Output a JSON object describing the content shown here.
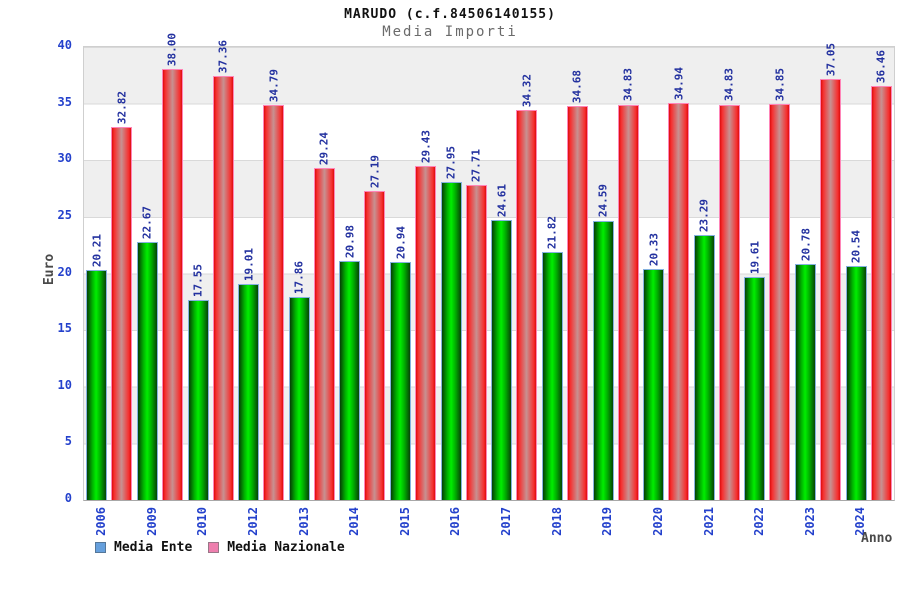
{
  "header": {
    "title": "MARUDO (c.f.84506140155)",
    "subtitle": "Media Importi"
  },
  "axes": {
    "y_label": "Euro",
    "x_label": "Anno",
    "y_ticks": [
      "40",
      "35",
      "30",
      "25",
      "20",
      "15",
      "10",
      "5",
      "0"
    ]
  },
  "legend": {
    "items": [
      {
        "label": "Media Ente",
        "swatch_color": "#66a0dd"
      },
      {
        "label": "Media Nazionale",
        "swatch_color": "#ee7fae"
      }
    ]
  },
  "chart_data": {
    "type": "bar",
    "title": "MARUDO (c.f.84506140155)",
    "subtitle": "Media Importi",
    "xlabel": "Anno",
    "ylabel": "Euro",
    "ylim": [
      0,
      40
    ],
    "ytick_step": 5,
    "grid": true,
    "alternating_bands": true,
    "legend_position": "bottom-left",
    "value_labels_rotated": true,
    "categories": [
      "2006",
      "2009",
      "2010",
      "2012",
      "2013",
      "2014",
      "2015",
      "2016",
      "2017",
      "2018",
      "2019",
      "2020",
      "2021",
      "2022",
      "2023",
      "2024"
    ],
    "series": [
      {
        "name": "Media Ente",
        "fill_center": "#00ee00",
        "fill_edge": "#063f06",
        "outline": "#85b2e0",
        "values": [
          20.21,
          22.67,
          17.55,
          19.01,
          17.86,
          20.98,
          20.94,
          27.95,
          24.61,
          21.82,
          24.59,
          20.33,
          23.29,
          19.61,
          20.78,
          20.54
        ]
      },
      {
        "name": "Media Nazionale",
        "fill_center": "#c79191",
        "fill_edge": "#dd0d0d",
        "outline": "#ff85b8",
        "values": [
          32.82,
          38.0,
          37.36,
          34.79,
          29.24,
          27.19,
          29.43,
          27.71,
          34.32,
          34.68,
          34.83,
          34.94,
          34.83,
          34.85,
          37.05,
          36.46
        ]
      }
    ],
    "label_color": "#22309f",
    "axis_text_color": "#2441cc"
  }
}
